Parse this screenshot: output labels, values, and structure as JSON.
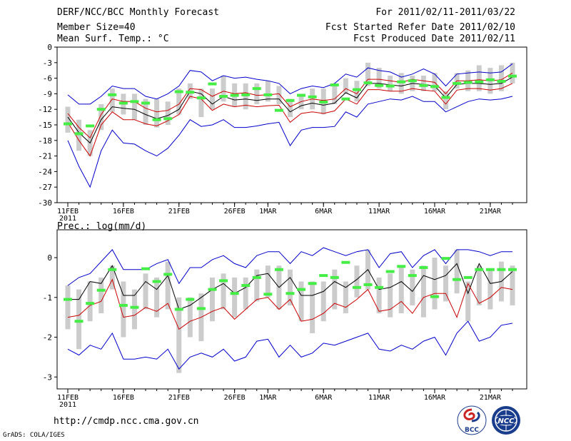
{
  "header": {
    "title": "DERF/NCC/BCC Monthly Forecast",
    "member_size": "Member Size=40",
    "variable": "Mean Surf. Temp.: °C",
    "period": "For 2011/02/11-2011/03/22",
    "started": "Fcst Started Refer Date 2011/02/10",
    "produced": "Fcst Produced Date 2011/02/11"
  },
  "footer": {
    "url": "http://cmdp.ncc.cma.gov.cn",
    "credit": "GrADS: COLA/IGES",
    "logo_bcc": "BCC",
    "logo_ncc": "NCC"
  },
  "colors": {
    "blue": "#0000cc",
    "red": "#cc0000",
    "black": "#000000",
    "green": "#44ee44",
    "gray": "#cccccc"
  },
  "chart_data": [
    {
      "type": "line",
      "title": "Mean Surf. Temp.: °C",
      "ylabel": "°C",
      "ylim": [
        -30,
        0
      ],
      "yticks": [
        0,
        -3,
        -6,
        -9,
        -12,
        -15,
        -18,
        -21,
        -24,
        -27,
        -30
      ],
      "x_ticks": [
        {
          "day": 0,
          "label": "11FEB",
          "sub": "2011"
        },
        {
          "day": 5,
          "label": "16FEB"
        },
        {
          "day": 10,
          "label": "21FEB"
        },
        {
          "day": 15,
          "label": "26FEB"
        },
        {
          "day": 18,
          "label": "1MAR"
        },
        {
          "day": 23,
          "label": "6MAR"
        },
        {
          "day": 28,
          "label": "11MAR"
        },
        {
          "day": 33,
          "label": "16MAR"
        },
        {
          "day": 38,
          "label": "21MAR"
        }
      ],
      "series": [
        {
          "name": "max",
          "color": "blue",
          "values": [
            -9.2,
            -11,
            -11,
            -9.5,
            -7.5,
            -8,
            -8,
            -9.5,
            -10,
            -9,
            -7.5,
            -4.5,
            -4.8,
            -6.5,
            -5.5,
            -6,
            -5.8,
            -6.2,
            -6.5,
            -7,
            -9,
            -8,
            -7.5,
            -7.8,
            -7,
            -5.2,
            -5.8,
            -4,
            -4.5,
            -4.8,
            -5.8,
            -5.2,
            -4.2,
            -5.2,
            -7.5,
            -5.2,
            -5,
            -4.8,
            -5,
            -4.8,
            -3.2
          ]
        },
        {
          "name": "p_high",
          "color": "red",
          "values": [
            -12.8,
            -15.5,
            -17.5,
            -13,
            -10,
            -10.5,
            -10.5,
            -11.8,
            -12.5,
            -12.2,
            -11,
            -8,
            -8.2,
            -9.5,
            -8.5,
            -9,
            -8.8,
            -9.3,
            -9.2,
            -9,
            -11.5,
            -10.5,
            -10,
            -10.3,
            -10,
            -8,
            -9,
            -6.2,
            -6.2,
            -6.5,
            -6.8,
            -6.2,
            -6.5,
            -6.8,
            -9,
            -6.5,
            -6.5,
            -6.3,
            -6.5,
            -6.3,
            -5
          ]
        },
        {
          "name": "mean",
          "color": "black",
          "values": [
            -13.5,
            -16.5,
            -18.5,
            -14,
            -11.5,
            -11.8,
            -12,
            -13,
            -13.8,
            -13.2,
            -12,
            -8.5,
            -9,
            -11,
            -9.5,
            -10.2,
            -10,
            -10.3,
            -10,
            -10,
            -12.5,
            -11.3,
            -10.8,
            -11.2,
            -10.8,
            -8.8,
            -9.8,
            -7,
            -7,
            -7.3,
            -7.5,
            -7,
            -7.2,
            -7.5,
            -9.8,
            -7.2,
            -7,
            -7,
            -7.2,
            -7,
            -5.8
          ]
        },
        {
          "name": "p_low",
          "color": "red",
          "values": [
            -14.5,
            -18,
            -21,
            -15,
            -12.5,
            -14,
            -14,
            -14.8,
            -15.2,
            -14.2,
            -13,
            -9.5,
            -10,
            -12.2,
            -11,
            -11.5,
            -11.2,
            -11.5,
            -11.3,
            -11.2,
            -14.5,
            -12.8,
            -12.5,
            -12.8,
            -12.3,
            -10,
            -11,
            -8.2,
            -8.2,
            -8.5,
            -8.5,
            -8,
            -8.3,
            -8.5,
            -11,
            -8.3,
            -8,
            -8,
            -8.3,
            -8,
            -7
          ]
        },
        {
          "name": "min",
          "color": "blue",
          "values": [
            -18,
            -23,
            -27,
            -20,
            -16,
            -18.5,
            -18.7,
            -20,
            -21,
            -19.5,
            -17,
            -14,
            -15.3,
            -15,
            -14,
            -15.5,
            -15.5,
            -15.2,
            -14.8,
            -14.5,
            -19,
            -16,
            -15.5,
            -15.5,
            -15.3,
            -12.5,
            -13.5,
            -11,
            -10.5,
            -10,
            -10.2,
            -9.5,
            -10.5,
            -10.5,
            -12.5,
            -11.5,
            -10.5,
            -10,
            -10.2,
            -10,
            -9.5
          ]
        }
      ],
      "boxes": [
        [
          -16.5,
          -11.5
        ],
        [
          -20,
          -14
        ],
        [
          -21,
          -16
        ],
        [
          -16,
          -11
        ],
        [
          -12.5,
          -8
        ],
        [
          -13,
          -9
        ],
        [
          -14,
          -9
        ],
        [
          -15,
          -10
        ],
        [
          -15.5,
          -10
        ],
        [
          -15,
          -10.5
        ],
        [
          -13,
          -8
        ],
        [
          -10,
          -7
        ],
        [
          -13.5,
          -8
        ],
        [
          -12,
          -8
        ],
        [
          -10.5,
          -5.5
        ],
        [
          -11.5,
          -7
        ],
        [
          -12,
          -7
        ],
        [
          -11,
          -7
        ],
        [
          -10.5,
          -6.5
        ],
        [
          -11,
          -7.5
        ],
        [
          -13.5,
          -10
        ],
        [
          -12,
          -9
        ],
        [
          -12,
          -8
        ],
        [
          -13,
          -8
        ],
        [
          -11,
          -7
        ],
        [
          -9,
          -6
        ],
        [
          -10.5,
          -6.5
        ],
        [
          -7.5,
          -3
        ],
        [
          -8,
          -4
        ],
        [
          -8.5,
          -5.5
        ],
        [
          -9,
          -5
        ],
        [
          -8.5,
          -5.5
        ],
        [
          -8.5,
          -5.5
        ],
        [
          -8.5,
          -5
        ],
        [
          -12,
          -8.5
        ],
        [
          -8,
          -5
        ],
        [
          -8.5,
          -4.5
        ],
        [
          -8.5,
          -3.5
        ],
        [
          -9,
          -4
        ],
        [
          -8.5,
          -3.5
        ],
        [
          -7,
          -3
        ]
      ],
      "greens": [
        -14.8,
        -16.7,
        -15.2,
        -12,
        -9.2,
        -10.8,
        -10.5,
        -10.8,
        -14,
        -13.8,
        -8.6,
        -8.7,
        -9.8,
        -7.1,
        -9.5,
        -9.3,
        -9.2,
        -8,
        -9.2,
        -12.2,
        -10.3,
        -9.3,
        -9.6,
        -10.6,
        -7.3,
        -10,
        -8.2,
        -6.9,
        -7.4,
        -7.5,
        -6.7,
        -6.5,
        -7.4,
        -7.6,
        -9.7,
        -7,
        -6.8,
        -6.7,
        -6.3,
        -6.6,
        -5.6
      ]
    },
    {
      "type": "line",
      "title": "Prec.: log(mm/d)",
      "ylabel": "log(mm/d)",
      "ylim": [
        -3.3,
        0.7
      ],
      "yticks": [
        0,
        -1,
        -2,
        -3
      ],
      "x_ticks": [
        {
          "day": 0,
          "label": "11FEB",
          "sub": "2011"
        },
        {
          "day": 5,
          "label": "16FEB"
        },
        {
          "day": 10,
          "label": "21FEB"
        },
        {
          "day": 15,
          "label": "26FEB"
        },
        {
          "day": 18,
          "label": "1MAR"
        },
        {
          "day": 23,
          "label": "6MAR"
        },
        {
          "day": 28,
          "label": "11MAR"
        },
        {
          "day": 33,
          "label": "16MAR"
        },
        {
          "day": 38,
          "label": "21MAR"
        }
      ],
      "series": [
        {
          "name": "max",
          "color": "blue",
          "values": [
            -0.7,
            -0.5,
            -0.4,
            -0.1,
            0.2,
            -0.3,
            -0.3,
            -0.3,
            -0.15,
            -0.05,
            -0.65,
            -0.25,
            -0.25,
            -0.05,
            0.05,
            -0.15,
            -0.25,
            0.05,
            0.15,
            0.15,
            -0.15,
            0.15,
            0.05,
            0.25,
            0.15,
            0.05,
            0.15,
            0.2,
            -0.25,
            0.1,
            0.15,
            -0.25,
            0.05,
            0.2,
            -0.15,
            0.2,
            0.2,
            0.15,
            0.05,
            0.15,
            0.15
          ]
        },
        {
          "name": "mean",
          "color": "black",
          "values": [
            -1.05,
            -1.05,
            -0.6,
            -0.65,
            -0.2,
            -0.95,
            -0.95,
            -0.6,
            -0.8,
            -0.45,
            -1.3,
            -1.2,
            -1,
            -0.8,
            -0.65,
            -0.9,
            -0.75,
            -0.45,
            -0.4,
            -0.75,
            -0.5,
            -0.95,
            -0.95,
            -0.85,
            -0.6,
            -0.75,
            -0.55,
            -0.3,
            -0.8,
            -0.75,
            -0.6,
            -0.85,
            -0.45,
            -0.55,
            -0.45,
            -0.15,
            -0.9,
            -0.15,
            -0.65,
            -0.6,
            -0.35
          ]
        },
        {
          "name": "p_low",
          "color": "red",
          "values": [
            -1.5,
            -1.45,
            -1.2,
            -1.1,
            -0.55,
            -1.5,
            -1.45,
            -1.25,
            -1.35,
            -1.15,
            -1.8,
            -1.6,
            -1.5,
            -1.35,
            -1.25,
            -1.55,
            -1.3,
            -1.05,
            -1,
            -1.3,
            -1.05,
            -1.6,
            -1.55,
            -1.4,
            -1.15,
            -1.25,
            -1.05,
            -0.8,
            -1.35,
            -1.3,
            -1.1,
            -1.4,
            -1,
            -0.9,
            -0.9,
            -1.5,
            -0.65,
            -1.15,
            -1,
            -0.75,
            -0.8
          ]
        },
        {
          "name": "min",
          "color": "blue",
          "values": [
            -2.3,
            -2.45,
            -2.2,
            -2.3,
            -1.9,
            -2.55,
            -2.55,
            -2.5,
            -2.55,
            -2.3,
            -2.8,
            -2.5,
            -2.4,
            -2.5,
            -2.3,
            -2.6,
            -2.5,
            -2.1,
            -2.05,
            -2.5,
            -2.2,
            -2.5,
            -2.4,
            -2.15,
            -2.2,
            -2.1,
            -2,
            -1.9,
            -2.3,
            -2.35,
            -2.2,
            -2.3,
            -2.1,
            -2,
            -2.45,
            -1.9,
            -1.6,
            -2.1,
            -2,
            -1.7,
            -1.65
          ]
        }
      ],
      "boxes": [
        [
          -1.8,
          -0.7
        ],
        [
          -2.3,
          -0.8
        ],
        [
          -1.6,
          -0.6
        ],
        [
          -1.4,
          -0.5
        ],
        [
          -0.8,
          -0.2
        ],
        [
          -2,
          -0.6
        ],
        [
          -1.8,
          -0.8
        ],
        [
          -1.3,
          -0.4
        ],
        [
          -1.5,
          -0.5
        ],
        [
          -1.3,
          -0.1
        ],
        [
          -2.9,
          -1
        ],
        [
          -2,
          -1
        ],
        [
          -2.1,
          -0.9
        ],
        [
          -1.6,
          -0.5
        ],
        [
          -1.3,
          -0.4
        ],
        [
          -1.5,
          -0.5
        ],
        [
          -1.3,
          -0.5
        ],
        [
          -1.1,
          -0.3
        ],
        [
          -1,
          -0.2
        ],
        [
          -1.3,
          -0.2
        ],
        [
          -1.2,
          -0.3
        ],
        [
          -1.6,
          -0.6
        ],
        [
          -1.9,
          -0.6
        ],
        [
          -1.6,
          -0.6
        ],
        [
          -1.3,
          -0.3
        ],
        [
          -1.4,
          -0.6
        ],
        [
          -1,
          -0.2
        ],
        [
          -0.8,
          0.2
        ],
        [
          -1.4,
          -0.5
        ],
        [
          -1.5,
          -0.4
        ],
        [
          -1.4,
          -0.2
        ],
        [
          -1.2,
          -0.3
        ],
        [
          -1.5,
          -0.2
        ],
        [
          -1.3,
          0
        ],
        [
          -1.1,
          -0.2
        ],
        [
          -0.9,
          0.2
        ],
        [
          -1.6,
          -0.6
        ],
        [
          -1.2,
          -0.2
        ],
        [
          -1.3,
          -0.3
        ],
        [
          -1.1,
          -0.1
        ],
        [
          -1.2,
          -0.2
        ]
      ],
      "greens": [
        -1.05,
        -1.6,
        -1.15,
        -0.82,
        -0.3,
        -1.2,
        -1.25,
        -0.28,
        -0.6,
        -0.42,
        -1.3,
        -1.05,
        -1.28,
        -0.8,
        -0.58,
        -0.9,
        -0.7,
        -0.5,
        -0.92,
        -0.3,
        -0.9,
        -0.8,
        -0.65,
        -0.45,
        -0.5,
        -0.12,
        -0.75,
        -0.68,
        -0.75,
        -0.35,
        -0.22,
        -0.45,
        -0.25,
        -0.98,
        -0.02,
        -0.55,
        -0.5,
        -0.3,
        -0.3,
        -0.3,
        -0.3
      ]
    }
  ]
}
